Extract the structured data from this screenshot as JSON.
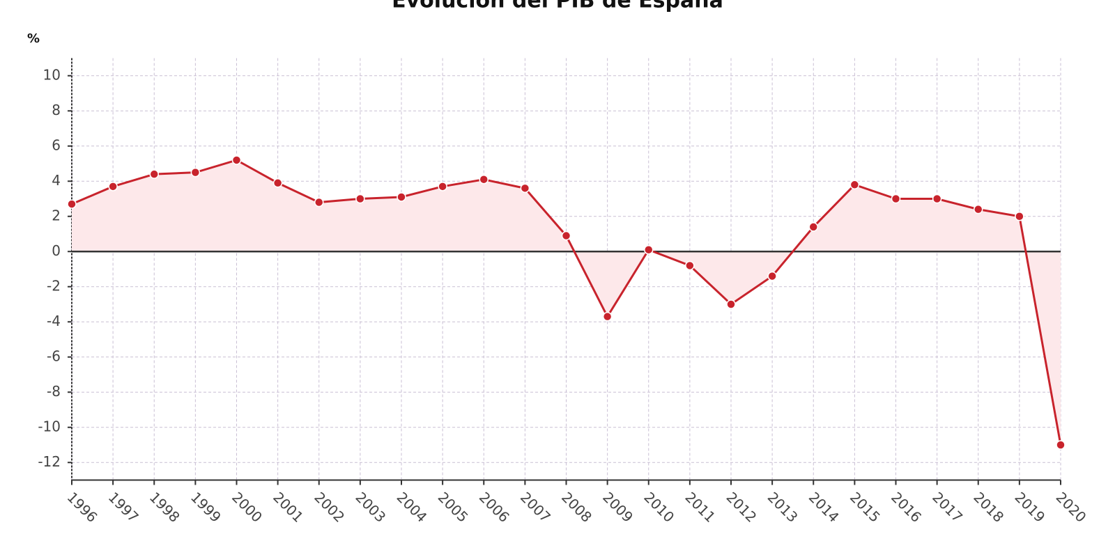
{
  "chart_data": {
    "type": "line",
    "title": "Evolución del PIB de España",
    "y_label": "%",
    "x": [
      1996,
      1997,
      1998,
      1999,
      2000,
      2001,
      2002,
      2003,
      2004,
      2005,
      2006,
      2007,
      2008,
      2009,
      2010,
      2011,
      2012,
      2013,
      2014,
      2015,
      2016,
      2017,
      2018,
      2019,
      2020
    ],
    "series": [
      {
        "name": "PIB",
        "color": "#c8232c",
        "values": [
          2.7,
          3.7,
          4.4,
          4.5,
          5.2,
          3.9,
          2.8,
          3.0,
          3.1,
          3.7,
          4.1,
          3.6,
          0.9,
          -3.7,
          0.1,
          -0.8,
          -3.0,
          -1.4,
          1.4,
          3.8,
          3.0,
          3.0,
          2.4,
          2.0,
          -11.0
        ]
      }
    ],
    "xlim": [
      1996,
      2020
    ],
    "xticks": [
      1996,
      1997,
      1998,
      1999,
      2000,
      2001,
      2002,
      2003,
      2004,
      2005,
      2006,
      2007,
      2008,
      2009,
      2010,
      2011,
      2012,
      2013,
      2014,
      2015,
      2016,
      2017,
      2018,
      2019,
      2020
    ],
    "ylim": [
      -13,
      11
    ],
    "yticks": [
      -12,
      -10,
      -8,
      -6,
      -4,
      -2,
      0,
      2,
      4,
      6,
      8,
      10
    ],
    "grid": true,
    "area_fill": "#fde8ea"
  }
}
